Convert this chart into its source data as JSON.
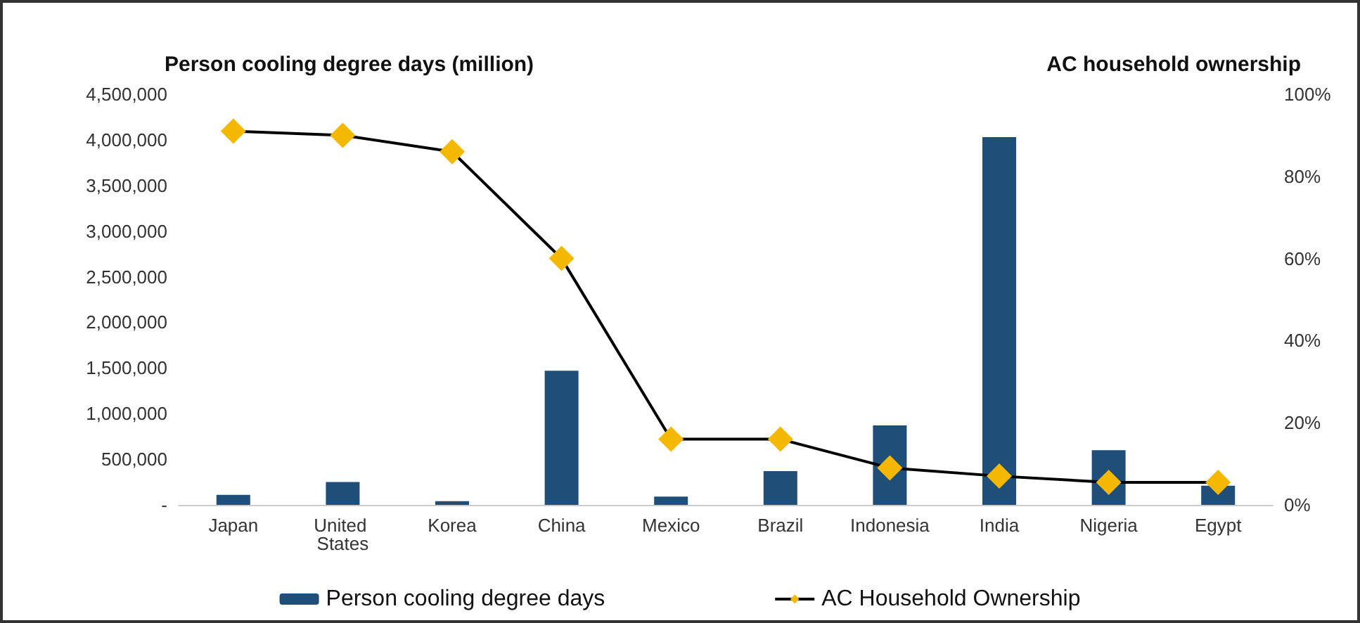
{
  "chart_data": {
    "type": "bar",
    "ylabel": "Person cooling degree days (million)",
    "y2label": "AC household ownership",
    "categories": [
      "Japan",
      "United States",
      "Korea",
      "China",
      "Mexico",
      "Brazil",
      "Indonesia",
      "India",
      "Nigeria",
      "Egypt"
    ],
    "series": [
      {
        "name": "Person cooling degree days",
        "color": "#1f4e79",
        "values": [
          110000,
          250000,
          40000,
          1470000,
          90000,
          370000,
          870000,
          4030000,
          600000,
          210000
        ]
      },
      {
        "name": "AC Household Ownership",
        "type": "line",
        "axis": "y2",
        "color": "#f5b800",
        "marker": "diamond",
        "values": [
          91,
          90,
          86,
          60,
          16,
          16,
          9,
          7,
          5.5,
          5.5
        ]
      }
    ],
    "ylim": [
      0,
      4500000
    ],
    "yticks": [
      {
        "value": 0,
        "label": "-"
      },
      {
        "value": 500000,
        "label": "500,000"
      },
      {
        "value": 1000000,
        "label": "1,000,000"
      },
      {
        "value": 1500000,
        "label": "1,500,000"
      },
      {
        "value": 2000000,
        "label": "2,000,000"
      },
      {
        "value": 2500000,
        "label": "2,500,000"
      },
      {
        "value": 3000000,
        "label": "3,000,000"
      },
      {
        "value": 3500000,
        "label": "3,500,000"
      },
      {
        "value": 4000000,
        "label": "4,000,000"
      },
      {
        "value": 4500000,
        "label": "4,500,000"
      }
    ],
    "y2lim": [
      0,
      100
    ],
    "y2ticks": [
      {
        "value": 0,
        "label": "0%"
      },
      {
        "value": 20,
        "label": "20%"
      },
      {
        "value": 40,
        "label": "40%"
      },
      {
        "value": 60,
        "label": "60%"
      },
      {
        "value": 80,
        "label": "80%"
      },
      {
        "value": 100,
        "label": "100%"
      }
    ],
    "grid": false,
    "legend": "bottom"
  }
}
